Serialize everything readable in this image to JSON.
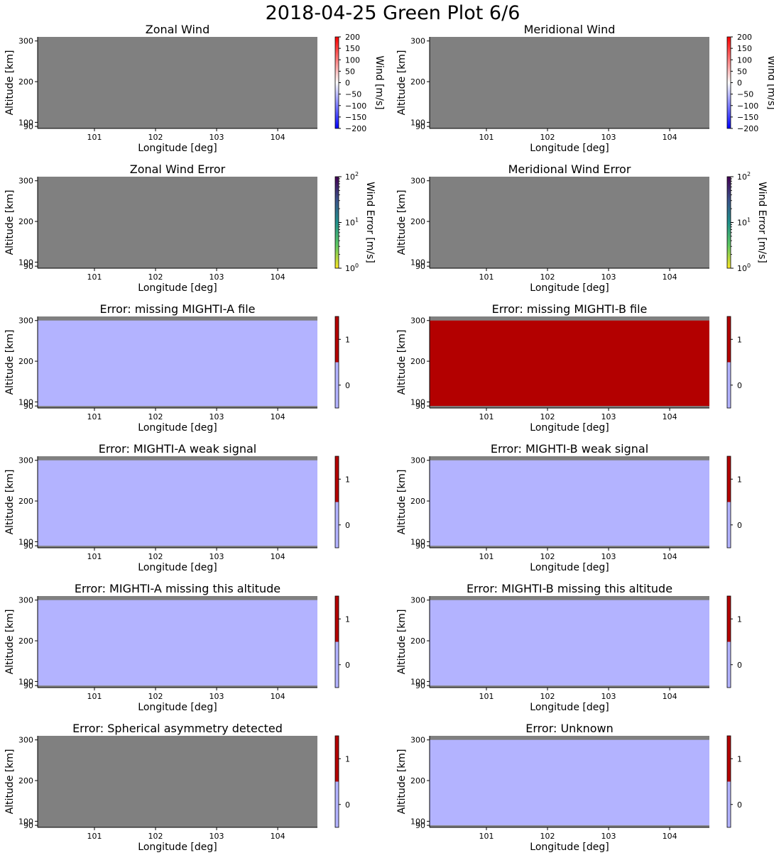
{
  "figure": {
    "title": "2018-04-25 Green Plot 6/6"
  },
  "colors": {
    "nodata_gray": "#808080",
    "flag_off": "#b3b3ff",
    "flag_on": "#b30000",
    "wind_high": "#ff0000",
    "wind_mid": "#ffffff",
    "wind_low": "#0000ff"
  },
  "chart_data": [
    {
      "type": "heatmap",
      "title": "Zonal Wind",
      "xlabel": "Longitude [deg]",
      "ylabel": "Altitude [km]",
      "x_ticks": [
        "101",
        "102",
        "103",
        "104"
      ],
      "y_ticks": [
        "300",
        "200",
        "100",
        "90"
      ],
      "xlim": [
        100.07,
        104.65
      ],
      "ylim": [
        85,
        310
      ],
      "data_band": null,
      "data_fill": "none",
      "colorbar": {
        "kind": "diverging",
        "label": "Wind [m/s]",
        "range": [
          -200,
          200
        ],
        "ticks": [
          "200",
          "150",
          "100",
          "50",
          "0",
          "−50",
          "−100",
          "−150",
          "−200"
        ]
      }
    },
    {
      "type": "heatmap",
      "title": "Meridional Wind",
      "xlabel": "Longitude [deg]",
      "ylabel": "Altitude [km]",
      "x_ticks": [
        "101",
        "102",
        "103",
        "104"
      ],
      "y_ticks": [
        "300",
        "200",
        "100",
        "90"
      ],
      "xlim": [
        100.07,
        104.65
      ],
      "ylim": [
        85,
        310
      ],
      "data_band": null,
      "data_fill": "none",
      "colorbar": {
        "kind": "diverging",
        "label": "Wind [m/s]",
        "range": [
          -200,
          200
        ],
        "ticks": [
          "200",
          "150",
          "100",
          "50",
          "0",
          "−50",
          "−100",
          "−150",
          "−200"
        ]
      }
    },
    {
      "type": "heatmap",
      "title": "Zonal Wind Error",
      "xlabel": "Longitude [deg]",
      "ylabel": "Altitude [km]",
      "x_ticks": [
        "101",
        "102",
        "103",
        "104"
      ],
      "y_ticks": [
        "300",
        "200",
        "100",
        "90"
      ],
      "xlim": [
        100.07,
        104.65
      ],
      "ylim": [
        85,
        310
      ],
      "data_band": null,
      "data_fill": "none",
      "colorbar": {
        "kind": "log-viridis",
        "label": "Wind Error [m/s]",
        "range": [
          1,
          100
        ],
        "scale": "log",
        "ticks": [
          {
            "base": "10",
            "exp": "2"
          },
          {
            "base": "10",
            "exp": "1"
          },
          {
            "base": "10",
            "exp": "0"
          }
        ]
      }
    },
    {
      "type": "heatmap",
      "title": "Meridional Wind Error",
      "xlabel": "Longitude [deg]",
      "ylabel": "Altitude [km]",
      "x_ticks": [
        "101",
        "102",
        "103",
        "104"
      ],
      "y_ticks": [
        "300",
        "200",
        "100",
        "90"
      ],
      "xlim": [
        100.07,
        104.65
      ],
      "ylim": [
        85,
        310
      ],
      "data_band": null,
      "data_fill": "none",
      "colorbar": {
        "kind": "log-viridis",
        "label": "Wind Error [m/s]",
        "range": [
          1,
          100
        ],
        "scale": "log",
        "ticks": [
          {
            "base": "10",
            "exp": "2"
          },
          {
            "base": "10",
            "exp": "1"
          },
          {
            "base": "10",
            "exp": "0"
          }
        ]
      }
    },
    {
      "type": "heatmap",
      "title": "Error: missing MIGHTI-A file",
      "xlabel": "Longitude [deg]",
      "ylabel": "Altitude [km]",
      "x_ticks": [
        "101",
        "102",
        "103",
        "104"
      ],
      "y_ticks": [
        "300",
        "200",
        "100",
        "90"
      ],
      "xlim": [
        100.07,
        104.65
      ],
      "ylim": [
        85,
        310
      ],
      "data_band": [
        90,
        300
      ],
      "data_fill": "off",
      "flag_value": 0,
      "colorbar": {
        "kind": "binary",
        "label": "",
        "range": [
          -0.5,
          1.5
        ],
        "ticks": [
          "1",
          "0"
        ]
      }
    },
    {
      "type": "heatmap",
      "title": "Error: missing MIGHTI-B file",
      "xlabel": "Longitude [deg]",
      "ylabel": "Altitude [km]",
      "x_ticks": [
        "101",
        "102",
        "103",
        "104"
      ],
      "y_ticks": [
        "300",
        "200",
        "100",
        "90"
      ],
      "xlim": [
        100.07,
        104.65
      ],
      "ylim": [
        85,
        310
      ],
      "data_band": [
        90,
        300
      ],
      "data_fill": "on",
      "flag_value": 1,
      "colorbar": {
        "kind": "binary",
        "label": "",
        "range": [
          -0.5,
          1.5
        ],
        "ticks": [
          "1",
          "0"
        ]
      }
    },
    {
      "type": "heatmap",
      "title": "Error: MIGHTI-A weak signal",
      "xlabel": "Longitude [deg]",
      "ylabel": "Altitude [km]",
      "x_ticks": [
        "101",
        "102",
        "103",
        "104"
      ],
      "y_ticks": [
        "300",
        "200",
        "100",
        "90"
      ],
      "xlim": [
        100.07,
        104.65
      ],
      "ylim": [
        85,
        310
      ],
      "data_band": [
        90,
        300
      ],
      "data_fill": "off",
      "flag_value": 0,
      "colorbar": {
        "kind": "binary",
        "label": "",
        "range": [
          -0.5,
          1.5
        ],
        "ticks": [
          "1",
          "0"
        ]
      }
    },
    {
      "type": "heatmap",
      "title": "Error: MIGHTI-B weak signal",
      "xlabel": "Longitude [deg]",
      "ylabel": "Altitude [km]",
      "x_ticks": [
        "101",
        "102",
        "103",
        "104"
      ],
      "y_ticks": [
        "300",
        "200",
        "100",
        "90"
      ],
      "xlim": [
        100.07,
        104.65
      ],
      "ylim": [
        85,
        310
      ],
      "data_band": [
        90,
        300
      ],
      "data_fill": "off",
      "flag_value": 0,
      "colorbar": {
        "kind": "binary",
        "label": "",
        "range": [
          -0.5,
          1.5
        ],
        "ticks": [
          "1",
          "0"
        ]
      }
    },
    {
      "type": "heatmap",
      "title": "Error: MIGHTI-A missing this altitude",
      "xlabel": "Longitude [deg]",
      "ylabel": "Altitude [km]",
      "x_ticks": [
        "101",
        "102",
        "103",
        "104"
      ],
      "y_ticks": [
        "300",
        "200",
        "100",
        "90"
      ],
      "xlim": [
        100.07,
        104.65
      ],
      "ylim": [
        85,
        310
      ],
      "data_band": [
        90,
        300
      ],
      "data_fill": "off",
      "flag_value": 0,
      "colorbar": {
        "kind": "binary",
        "label": "",
        "range": [
          -0.5,
          1.5
        ],
        "ticks": [
          "1",
          "0"
        ]
      }
    },
    {
      "type": "heatmap",
      "title": "Error: MIGHTI-B missing this altitude",
      "xlabel": "Longitude [deg]",
      "ylabel": "Altitude [km]",
      "x_ticks": [
        "101",
        "102",
        "103",
        "104"
      ],
      "y_ticks": [
        "300",
        "200",
        "100",
        "90"
      ],
      "xlim": [
        100.07,
        104.65
      ],
      "ylim": [
        85,
        310
      ],
      "data_band": [
        90,
        300
      ],
      "data_fill": "off",
      "flag_value": 0,
      "colorbar": {
        "kind": "binary",
        "label": "",
        "range": [
          -0.5,
          1.5
        ],
        "ticks": [
          "1",
          "0"
        ]
      }
    },
    {
      "type": "heatmap",
      "title": "Error: Spherical asymmetry detected",
      "xlabel": "Longitude [deg]",
      "ylabel": "Altitude [km]",
      "x_ticks": [
        "101",
        "102",
        "103",
        "104"
      ],
      "y_ticks": [
        "300",
        "200",
        "100",
        "90"
      ],
      "xlim": [
        100.07,
        104.65
      ],
      "ylim": [
        85,
        310
      ],
      "data_band": null,
      "data_fill": "none",
      "colorbar": {
        "kind": "binary",
        "label": "",
        "range": [
          -0.5,
          1.5
        ],
        "ticks": [
          "1",
          "0"
        ]
      }
    },
    {
      "type": "heatmap",
      "title": "Error: Unknown",
      "xlabel": "Longitude [deg]",
      "ylabel": "Altitude [km]",
      "x_ticks": [
        "101",
        "102",
        "103",
        "104"
      ],
      "y_ticks": [
        "300",
        "200",
        "100",
        "90"
      ],
      "xlim": [
        100.07,
        104.65
      ],
      "ylim": [
        85,
        310
      ],
      "data_band": [
        90,
        300
      ],
      "data_fill": "off",
      "flag_value": 0,
      "colorbar": {
        "kind": "binary",
        "label": "",
        "range": [
          -0.5,
          1.5
        ],
        "ticks": [
          "1",
          "0"
        ]
      }
    }
  ]
}
